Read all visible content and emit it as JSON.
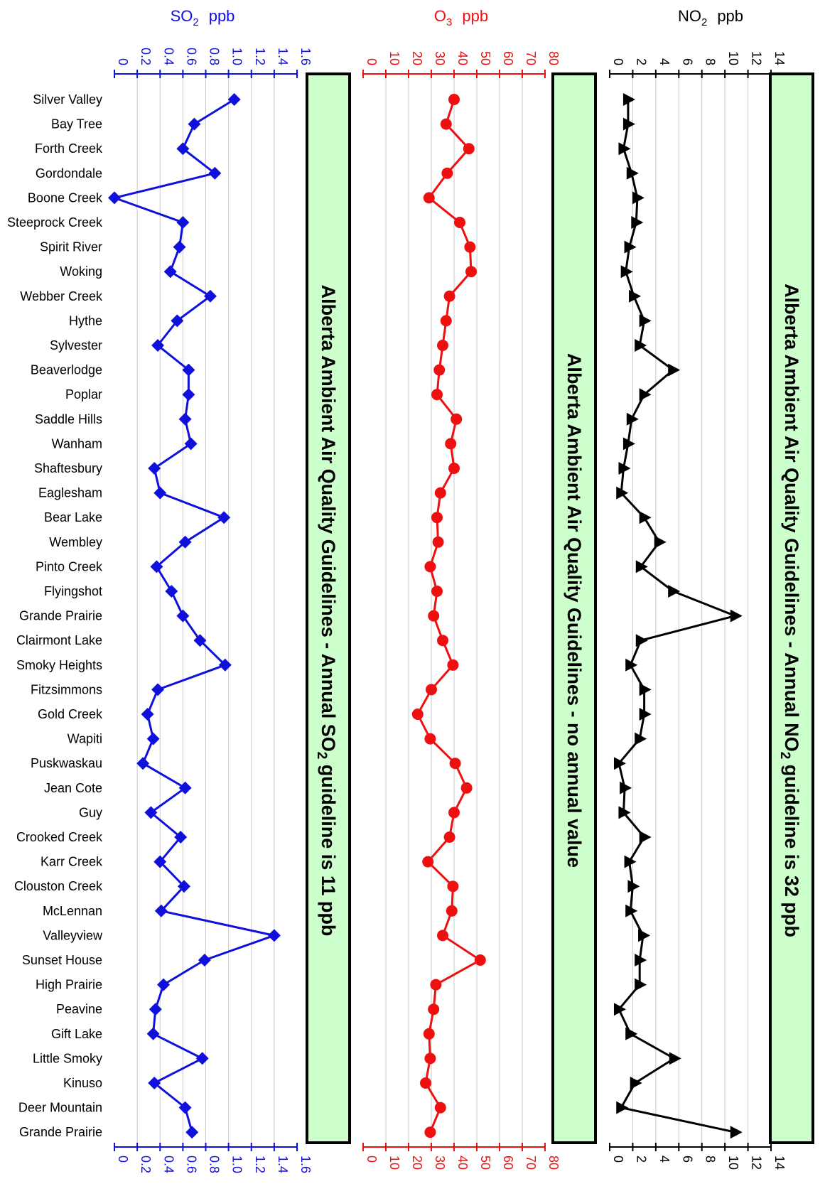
{
  "chart_data": [
    {
      "type": "line",
      "title_main": "SO",
      "title_sub": "2",
      "title_unit": "ppb",
      "xlim": [
        0,
        1.6
      ],
      "ticks": [
        "0",
        "0.2",
        "0.4",
        "0.6",
        "0.8",
        "1.0",
        "1.2",
        "1.4",
        "1.6"
      ],
      "color": "#1010dd",
      "marker": "diamond",
      "guideline_main": "Alberta Ambient Air Quality Guidelines - Annual SO",
      "guideline_sub": "2",
      "guideline_tail": " guideline is 11 ppb",
      "values": [
        1.05,
        0.7,
        0.6,
        0.88,
        0.0,
        0.6,
        0.57,
        0.49,
        0.84,
        0.55,
        0.38,
        0.65,
        0.65,
        0.62,
        0.67,
        0.35,
        0.4,
        0.96,
        0.62,
        0.37,
        0.5,
        0.6,
        0.75,
        0.97,
        0.38,
        0.29,
        0.34,
        0.25,
        0.62,
        0.32,
        0.58,
        0.4,
        0.61,
        0.41,
        1.4,
        0.79,
        0.43,
        0.36,
        0.34,
        0.77,
        0.35,
        0.62,
        0.68
      ]
    },
    {
      "type": "line",
      "title_main": "O",
      "title_sub": "3",
      "title_unit": "ppb",
      "xlim": [
        0,
        80
      ],
      "ticks": [
        "0",
        "10",
        "20",
        "30",
        "40",
        "50",
        "60",
        "70",
        "80"
      ],
      "color": "#ee1010",
      "marker": "circle",
      "guideline_main": "Alberta Ambient Air Quality Guidelines - no annual value",
      "guideline_sub": "",
      "guideline_tail": "",
      "values": [
        40,
        36.5,
        46.5,
        37,
        29,
        42.5,
        47,
        47.5,
        38,
        36.5,
        35,
        33.5,
        32.5,
        41,
        38.5,
        40,
        34,
        32.5,
        33,
        29.5,
        32.5,
        31,
        35,
        39.5,
        30,
        24,
        29.5,
        40.5,
        45.5,
        40,
        38,
        28.5,
        39.5,
        39,
        35,
        51.5,
        32,
        31,
        29,
        29.5,
        27.5,
        34,
        29.5
      ]
    },
    {
      "type": "line",
      "title_main": "NO",
      "title_sub": "2",
      "title_unit": "ppb",
      "xlim": [
        0,
        14
      ],
      "ticks": [
        "0",
        "2",
        "4",
        "6",
        "8",
        "10",
        "12",
        "14"
      ],
      "color": "#000000",
      "marker": "triangle",
      "guideline_main": "Alberta Ambient Air Quality Guidelines - Annual NO",
      "guideline_sub": "2",
      "guideline_tail": " guideline is 32 ppb",
      "values": [
        1.6,
        1.6,
        1.2,
        1.9,
        2.4,
        2.3,
        1.7,
        1.4,
        2.1,
        3.0,
        2.6,
        5.5,
        3.0,
        1.9,
        1.6,
        1.2,
        1.0,
        3.0,
        4.3,
        2.7,
        5.5,
        10.9,
        2.7,
        1.8,
        3.0,
        3.0,
        2.6,
        0.8,
        1.3,
        1.2,
        3.0,
        1.7,
        2.0,
        1.8,
        2.9,
        2.6,
        2.6,
        0.8,
        1.8,
        5.6,
        2.2,
        1.0,
        10.9
      ]
    }
  ],
  "sites": [
    "Silver Valley",
    "Bay Tree",
    "Forth Creek",
    "Gordondale",
    "Boone Creek",
    "Steeprock Creek",
    "Spirit River",
    "Woking",
    "Webber Creek",
    "Hythe",
    "Sylvester",
    "Beaverlodge",
    "Poplar",
    "Saddle Hills",
    "Wanham",
    "Shaftesbury",
    "Eaglesham",
    "Bear Lake",
    "Wembley",
    "Pinto Creek",
    "Flyingshot",
    "Grande Prairie",
    "Clairmont Lake",
    "Smoky Heights",
    "Fitzsimmons",
    "Gold Creek",
    "Wapiti",
    "Puskwaskau",
    "Jean Cote",
    "Guy",
    "Crooked Creek",
    "Karr Creek",
    "Clouston Creek",
    "McLennan",
    "Valleyview",
    "Sunset House",
    "High Prairie",
    "Peavine",
    "Gift Lake",
    "Little Smoky",
    "Kinuso",
    "Deer Mountain",
    "Grande Prairie"
  ],
  "colors": {
    "guideline_fill": "#ccffcc",
    "grid": "#c8c8c8"
  }
}
